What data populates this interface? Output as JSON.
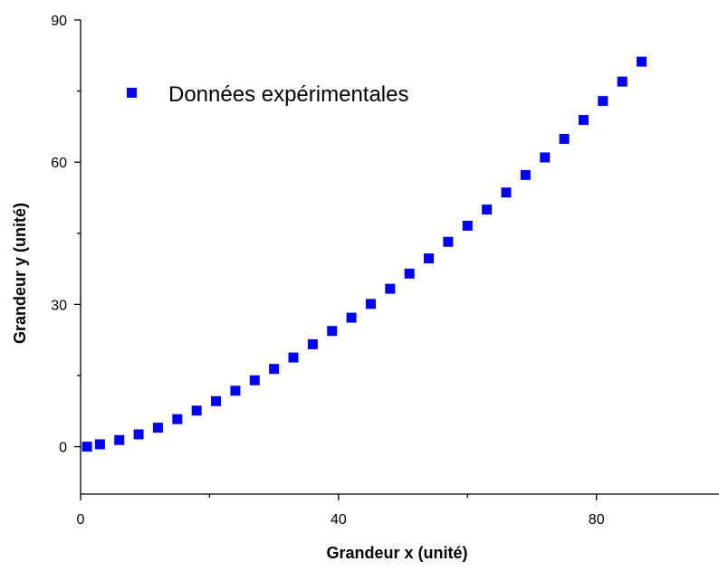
{
  "chart_data": {
    "type": "scatter",
    "title": "",
    "xlabel": "Grandeur x (unité)",
    "ylabel": "Grandeur y (unité)",
    "xlim": [
      0,
      99
    ],
    "ylim": [
      -10,
      90
    ],
    "x_ticks": [
      0,
      40,
      80
    ],
    "y_ticks": [
      0,
      30,
      60,
      90
    ],
    "x_tick_labels": [
      "0",
      "40",
      "80"
    ],
    "y_tick_labels": [
      "0",
      "30",
      "60",
      "90"
    ],
    "grid": false,
    "legend_position": "top-left",
    "marker": "square",
    "color": "#0000ff",
    "series": [
      {
        "name": "Données expérimentales",
        "x": [
          1,
          3,
          6,
          9,
          12,
          15,
          18,
          21,
          24,
          27,
          30,
          33,
          36,
          39,
          42,
          45,
          48,
          51,
          54,
          57,
          60,
          63,
          66,
          69,
          72,
          75,
          78,
          81,
          84,
          87
        ],
        "y": [
          0.0,
          0.5,
          1.4,
          2.6,
          4.0,
          5.8,
          7.6,
          9.6,
          11.8,
          14.0,
          16.4,
          18.8,
          21.6,
          24.4,
          27.2,
          30.1,
          33.3,
          36.5,
          39.7,
          43.2,
          46.6,
          50.0,
          53.6,
          57.3,
          61.0,
          64.9,
          68.9,
          72.9,
          77.0,
          81.2
        ]
      }
    ]
  }
}
